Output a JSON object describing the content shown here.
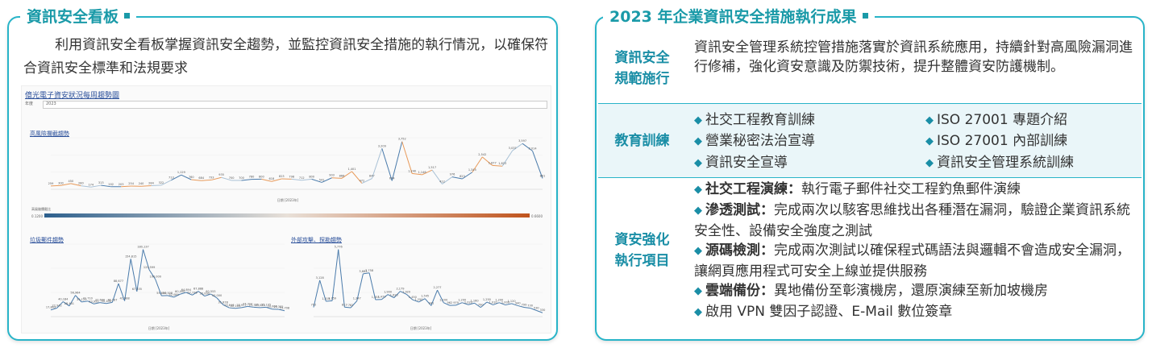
{
  "left": {
    "title": "資訊安全看板",
    "intro": "利用資訊安全看板掌握資訊安全趨勢，並監控資訊安全措施的執行情況，以確保符合資訊安全標準和法規要求",
    "dashboard": {
      "link_title": "億光電子資安狀況每周趨勢圖",
      "filter_label": "年度",
      "filter_value": "2023",
      "chart1_title": "高風險攔截趨勢",
      "chart1_xlabel": "日期 [2023年]",
      "legend_label": "高風險攔截比",
      "legend_min": "0.1200",
      "legend_max": "0.6600",
      "chart2_title": "垃圾郵件趨勢",
      "chart2_xlabel": "日期 [2023年]",
      "chart3_title": "外部攻擊、探勘趨勢",
      "chart3_xlabel": "日期 [2023年]"
    }
  },
  "right": {
    "title": "2023 年企業資訊安全措施執行成果",
    "rows": [
      {
        "label_l1": "資訊安全",
        "label_l2": "規範施行",
        "content": "資訊安全管理系統控管措施落實於資訊系統應用，持續針對高風險漏洞進行修補，強化資安意識及防禦技術，提升整體資安防護機制。"
      },
      {
        "label": "教育訓練",
        "items": [
          "社交工程教育訓練",
          "ISO 27001 專題介紹",
          "營業秘密法治宣導",
          "ISO 27001 內部訓練",
          "資訊安全宣導",
          "資訊安全管理系統訓練"
        ]
      },
      {
        "label_l1": "資安強化",
        "label_l2": "執行項目",
        "items": [
          {
            "head": "社交工程演練：",
            "text": "執行電子郵件社交工程釣魚郵件演練"
          },
          {
            "head": "滲透測試：",
            "text": "完成兩次以駭客思維找出各種潛在漏洞，驗證企業資訊系統安全性、設備安全強度之測試"
          },
          {
            "head": "源碼檢測：",
            "text": "完成兩次測試以確保程式碼語法與邏輯不會造成安全漏洞，讓網頁應用程式可安全上線並提供服務"
          },
          {
            "head": "雲端備份：",
            "text": "異地備份至彰濱機房，還原演練至新加坡機房"
          },
          {
            "head": "",
            "text": "啟用 VPN 雙因子認證、E-Mail 數位簽章"
          }
        ]
      }
    ]
  },
  "chart_data": [
    {
      "type": "line",
      "title": "高風險攔截趨勢",
      "xlabel": "日期 [2023年]",
      "values": [
        259,
        300,
        450,
        280,
        174,
        313,
        202,
        203,
        254,
        240,
        284,
        322,
        713,
        1129,
        760,
        684,
        733,
        935,
        700,
        700,
        780,
        800,
        618,
        823,
        798,
        712,
        800,
        541,
        903,
        866,
        1401,
        472,
        847,
        3209,
        674,
        3752,
        1240,
        1146,
        1517,
        412,
        976,
        823,
        1345,
        2542,
        1877,
        1823,
        3037,
        3597,
        3014,
        861
      ]
    },
    {
      "type": "line",
      "title": "垃圾郵件趨勢",
      "xlabel": "日期 [2023年]",
      "values": [
        17843,
        22942,
        40184,
        28461,
        56964,
        39127,
        41710,
        33955,
        37600,
        35100,
        38187,
        88677,
        41988,
        154815,
        67335,
        180137,
        125599,
        100000,
        55800,
        56508,
        52089,
        60000,
        64894,
        57776,
        67888,
        55000,
        60553,
        50000,
        31878,
        23646,
        22105,
        23977,
        27311,
        25185,
        24033,
        25105,
        20000,
        19385,
        15708
      ]
    },
    {
      "type": "line",
      "title": "外部攻擊、探勘趨勢",
      "xlabel": "日期 [2023年]",
      "values": [
        792,
        3128,
        1319,
        1359,
        5776,
        813,
        762,
        1347,
        3683,
        3758,
        1454,
        1473,
        1900,
        1620,
        2179,
        1920,
        1450,
        1250,
        1545,
        941,
        2277,
        1200,
        962,
        979,
        1200,
        1020,
        1160,
        790,
        1250,
        1010,
        1200,
        1000,
        1120,
        940,
        799,
        730,
        530,
        330
      ]
    }
  ]
}
